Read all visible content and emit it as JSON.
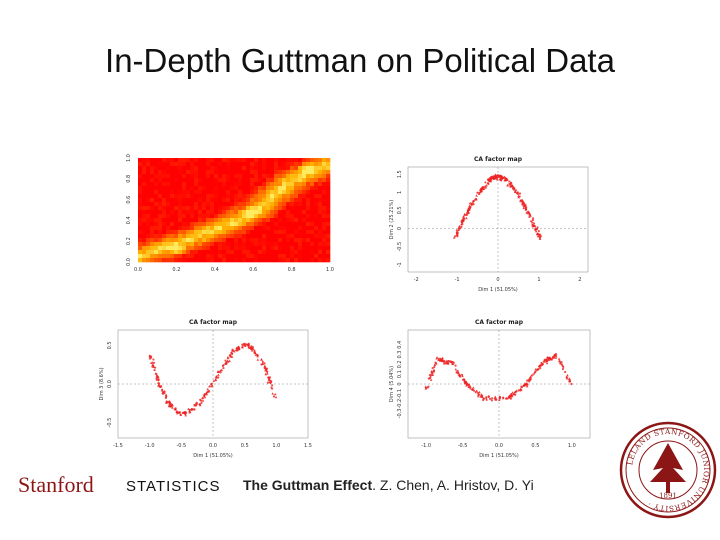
{
  "slide": {
    "title": "In-Depth Guttman on Political Data"
  },
  "footer": {
    "stanford": "Stanford",
    "statistics": "STATISTICS",
    "cite_bold": "The Guttman Effect",
    "cite_rest": ". Z. Chen, A. Hristov, D. Yi"
  },
  "seal": {
    "icon": "stanford-seal-icon",
    "text": "LELAND STANFORD JUNIOR UNIVERSITY",
    "year": "1891",
    "color": "#8c1515"
  },
  "chart_data": [
    {
      "type": "heatmap",
      "title": "",
      "xlabel": "",
      "ylabel": "",
      "xlim": [
        0,
        1
      ],
      "ylim": [
        0,
        1
      ],
      "xticks": [
        "0.0",
        "0.2",
        "0.4",
        "0.6",
        "0.8",
        "1.0"
      ],
      "yticks": [
        "0.0",
        "0.2",
        "0.4",
        "0.6",
        "0.8",
        "1.0"
      ],
      "palette": [
        "#ff0000",
        "#ff8800",
        "#ffee66"
      ],
      "ridge": [
        [
          0.0,
          0.05
        ],
        [
          0.25,
          0.2
        ],
        [
          0.5,
          0.38
        ],
        [
          0.62,
          0.5
        ],
        [
          0.8,
          0.78
        ],
        [
          1.0,
          0.95
        ]
      ]
    },
    {
      "type": "scatter",
      "title": "CA factor map",
      "xlabel": "Dim 1 (51.05%)",
      "ylabel": "Dim 2 (25.21%)",
      "xlim": [
        -2.2,
        2.2
      ],
      "ylim": [
        -1.2,
        1.7
      ],
      "xticks": [
        "-2",
        "-1",
        "0",
        "1",
        "2"
      ],
      "yticks": [
        "-1",
        "-0.5",
        "0",
        "0.5",
        "1",
        "1.5"
      ],
      "color": "#ee2222",
      "curve": [
        [
          -1.05,
          -0.25
        ],
        [
          -0.8,
          0.35
        ],
        [
          -0.5,
          0.95
        ],
        [
          -0.2,
          1.35
        ],
        [
          0.0,
          1.45
        ],
        [
          0.2,
          1.35
        ],
        [
          0.5,
          0.95
        ],
        [
          0.8,
          0.3
        ],
        [
          1.05,
          -0.3
        ]
      ]
    },
    {
      "type": "scatter",
      "title": "CA factor map",
      "xlabel": "Dim 1 (51.05%)",
      "ylabel": "Dim 3 (8.6%)",
      "xlim": [
        -1.5,
        1.5
      ],
      "ylim": [
        -0.7,
        0.7
      ],
      "xticks": [
        "-1.5",
        "-1.0",
        "-0.5",
        "0.0",
        "0.5",
        "1.0",
        "1.5"
      ],
      "yticks": [
        "0.5",
        "0.0",
        "-0.5"
      ],
      "color": "#ee2222",
      "curve": [
        [
          -1.0,
          0.38
        ],
        [
          -0.85,
          0.0
        ],
        [
          -0.7,
          -0.25
        ],
        [
          -0.5,
          -0.4
        ],
        [
          -0.2,
          -0.25
        ],
        [
          0.1,
          0.15
        ],
        [
          0.35,
          0.45
        ],
        [
          0.55,
          0.52
        ],
        [
          0.8,
          0.25
        ],
        [
          1.0,
          -0.2
        ]
      ]
    },
    {
      "type": "scatter",
      "title": "CA factor map",
      "xlabel": "Dim 1 (51.05%)",
      "ylabel": "Dim 4 (5.04%)",
      "xlim": [
        -1.25,
        1.25
      ],
      "ylim": [
        -0.55,
        0.55
      ],
      "xticks": [
        "-1.0",
        "-0.5",
        "0.0",
        "0.5",
        "1.0"
      ],
      "yticks": [
        "0.4",
        "0.3",
        "0.2",
        "0.1",
        "0",
        "-0.1",
        "-0.2",
        "-0.3"
      ],
      "color": "#ee2222",
      "curve": [
        [
          -1.0,
          -0.05
        ],
        [
          -0.85,
          0.25
        ],
        [
          -0.65,
          0.22
        ],
        [
          -0.45,
          0.0
        ],
        [
          -0.2,
          -0.15
        ],
        [
          0.1,
          -0.15
        ],
        [
          0.35,
          -0.02
        ],
        [
          0.6,
          0.22
        ],
        [
          0.8,
          0.3
        ],
        [
          1.0,
          0.0
        ]
      ]
    }
  ]
}
